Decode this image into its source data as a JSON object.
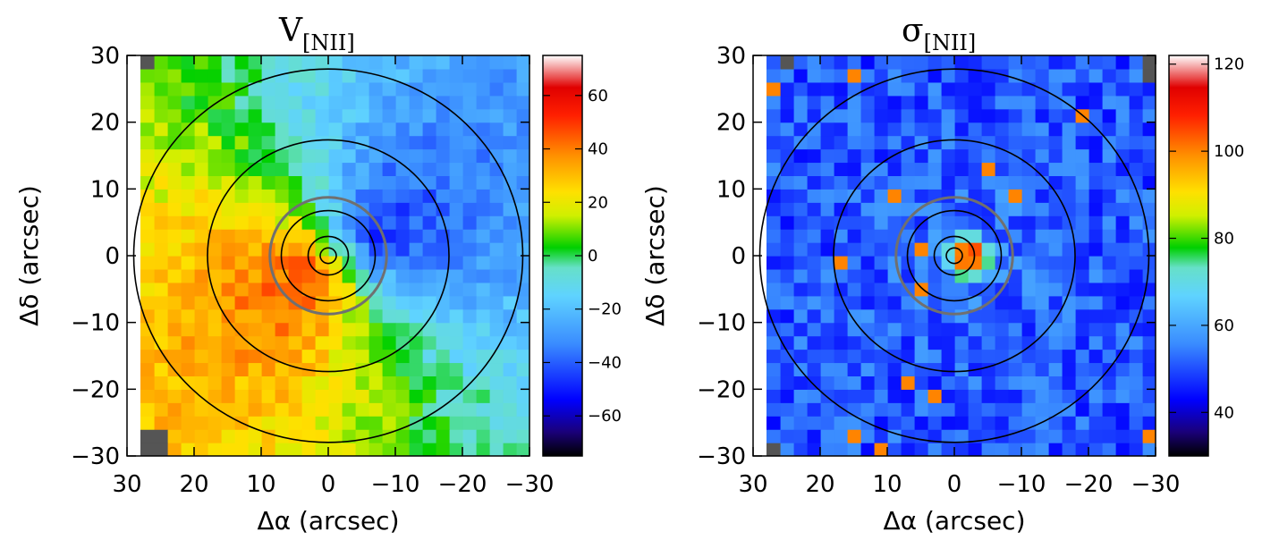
{
  "chart_data": [
    {
      "type": "heatmap",
      "title_symbol": "V",
      "title_subscript": "[NII]",
      "xlabel": "Δα (arcsec)",
      "ylabel": "Δδ (arcsec)",
      "xlim": [
        30,
        -30
      ],
      "ylim": [
        -30,
        30
      ],
      "x_ticks": [
        "30",
        "20",
        "10",
        "0",
        "−10",
        "−20",
        "−30"
      ],
      "x_tick_values": [
        30,
        20,
        10,
        0,
        -10,
        -20,
        -30
      ],
      "y_ticks": [
        "−30",
        "−20",
        "−10",
        "0",
        "10",
        "20",
        "30"
      ],
      "y_tick_values": [
        -30,
        -20,
        -10,
        0,
        10,
        20,
        30
      ],
      "colorbar": {
        "range": [
          -75,
          75
        ],
        "ticks": [
          "−60",
          "−40",
          "−20",
          "0",
          "20",
          "40",
          "60"
        ],
        "tick_values": [
          -60,
          -40,
          -20,
          0,
          20,
          40,
          60
        ]
      },
      "field_model": "velocity",
      "grey_circle_radius": 8.7,
      "contour_radii": [
        1.2,
        3,
        7,
        18,
        29
      ]
    },
    {
      "type": "heatmap",
      "title_symbol": "σ",
      "title_subscript": "[NII]",
      "xlabel": "Δα (arcsec)",
      "ylabel": "Δδ (arcsec)",
      "xlim": [
        30,
        -30
      ],
      "ylim": [
        -30,
        30
      ],
      "x_ticks": [
        "30",
        "20",
        "10",
        "0",
        "−10",
        "−20",
        "−30"
      ],
      "x_tick_values": [
        30,
        20,
        10,
        0,
        -10,
        -20,
        -30
      ],
      "y_ticks": [
        "−30",
        "−20",
        "−10",
        "0",
        "10",
        "20",
        "30"
      ],
      "y_tick_values": [
        -30,
        -20,
        -10,
        0,
        10,
        20,
        30
      ],
      "colorbar": {
        "range": [
          30,
          122
        ],
        "ticks": [
          "40",
          "60",
          "80",
          "100",
          "120"
        ],
        "tick_values": [
          40,
          60,
          80,
          100,
          120
        ]
      },
      "field_model": "dispersion",
      "grey_circle_radius": 8.7,
      "contour_radii": [
        1.2,
        3,
        7,
        18,
        29
      ]
    }
  ]
}
